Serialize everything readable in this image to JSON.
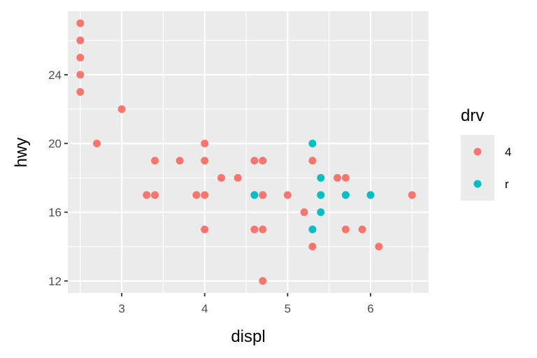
{
  "chart_data": {
    "type": "scatter",
    "title": "",
    "xlabel": "displ",
    "ylabel": "hwy",
    "xlim": [
      2.35,
      6.7
    ],
    "ylim": [
      11.3,
      27.7
    ],
    "x_ticks": [
      3,
      4,
      5,
      6
    ],
    "y_ticks": [
      12,
      16,
      20,
      24
    ],
    "grid": true,
    "legend": {
      "title": "drv",
      "position": "right",
      "entries": [
        {
          "label": "4",
          "color": "#F8766D"
        },
        {
          "label": "r",
          "color": "#00BFC4"
        }
      ]
    },
    "series": [
      {
        "name": "4",
        "color": "#F8766D",
        "points": [
          [
            2.5,
            27
          ],
          [
            2.5,
            26
          ],
          [
            2.5,
            25
          ],
          [
            2.5,
            24
          ],
          [
            2.5,
            23
          ],
          [
            2.7,
            20
          ],
          [
            3.0,
            22
          ],
          [
            3.3,
            17
          ],
          [
            3.4,
            19
          ],
          [
            3.4,
            17
          ],
          [
            3.7,
            19
          ],
          [
            3.9,
            17
          ],
          [
            4.0,
            20
          ],
          [
            4.0,
            19
          ],
          [
            4.0,
            17
          ],
          [
            4.0,
            15
          ],
          [
            4.2,
            18
          ],
          [
            4.4,
            18
          ],
          [
            4.6,
            19
          ],
          [
            4.6,
            15
          ],
          [
            4.7,
            19
          ],
          [
            4.7,
            17
          ],
          [
            4.7,
            15
          ],
          [
            4.7,
            12
          ],
          [
            5.0,
            17
          ],
          [
            5.2,
            16
          ],
          [
            5.3,
            19
          ],
          [
            5.3,
            14
          ],
          [
            5.6,
            18
          ],
          [
            5.7,
            18
          ],
          [
            5.7,
            15
          ],
          [
            5.9,
            15
          ],
          [
            6.1,
            14
          ],
          [
            6.5,
            17
          ]
        ]
      },
      {
        "name": "r",
        "color": "#00BFC4",
        "points": [
          [
            4.6,
            17
          ],
          [
            5.3,
            20
          ],
          [
            5.3,
            15
          ],
          [
            5.4,
            18
          ],
          [
            5.4,
            17
          ],
          [
            5.4,
            16
          ],
          [
            5.7,
            17
          ],
          [
            6.0,
            17
          ]
        ]
      }
    ]
  }
}
